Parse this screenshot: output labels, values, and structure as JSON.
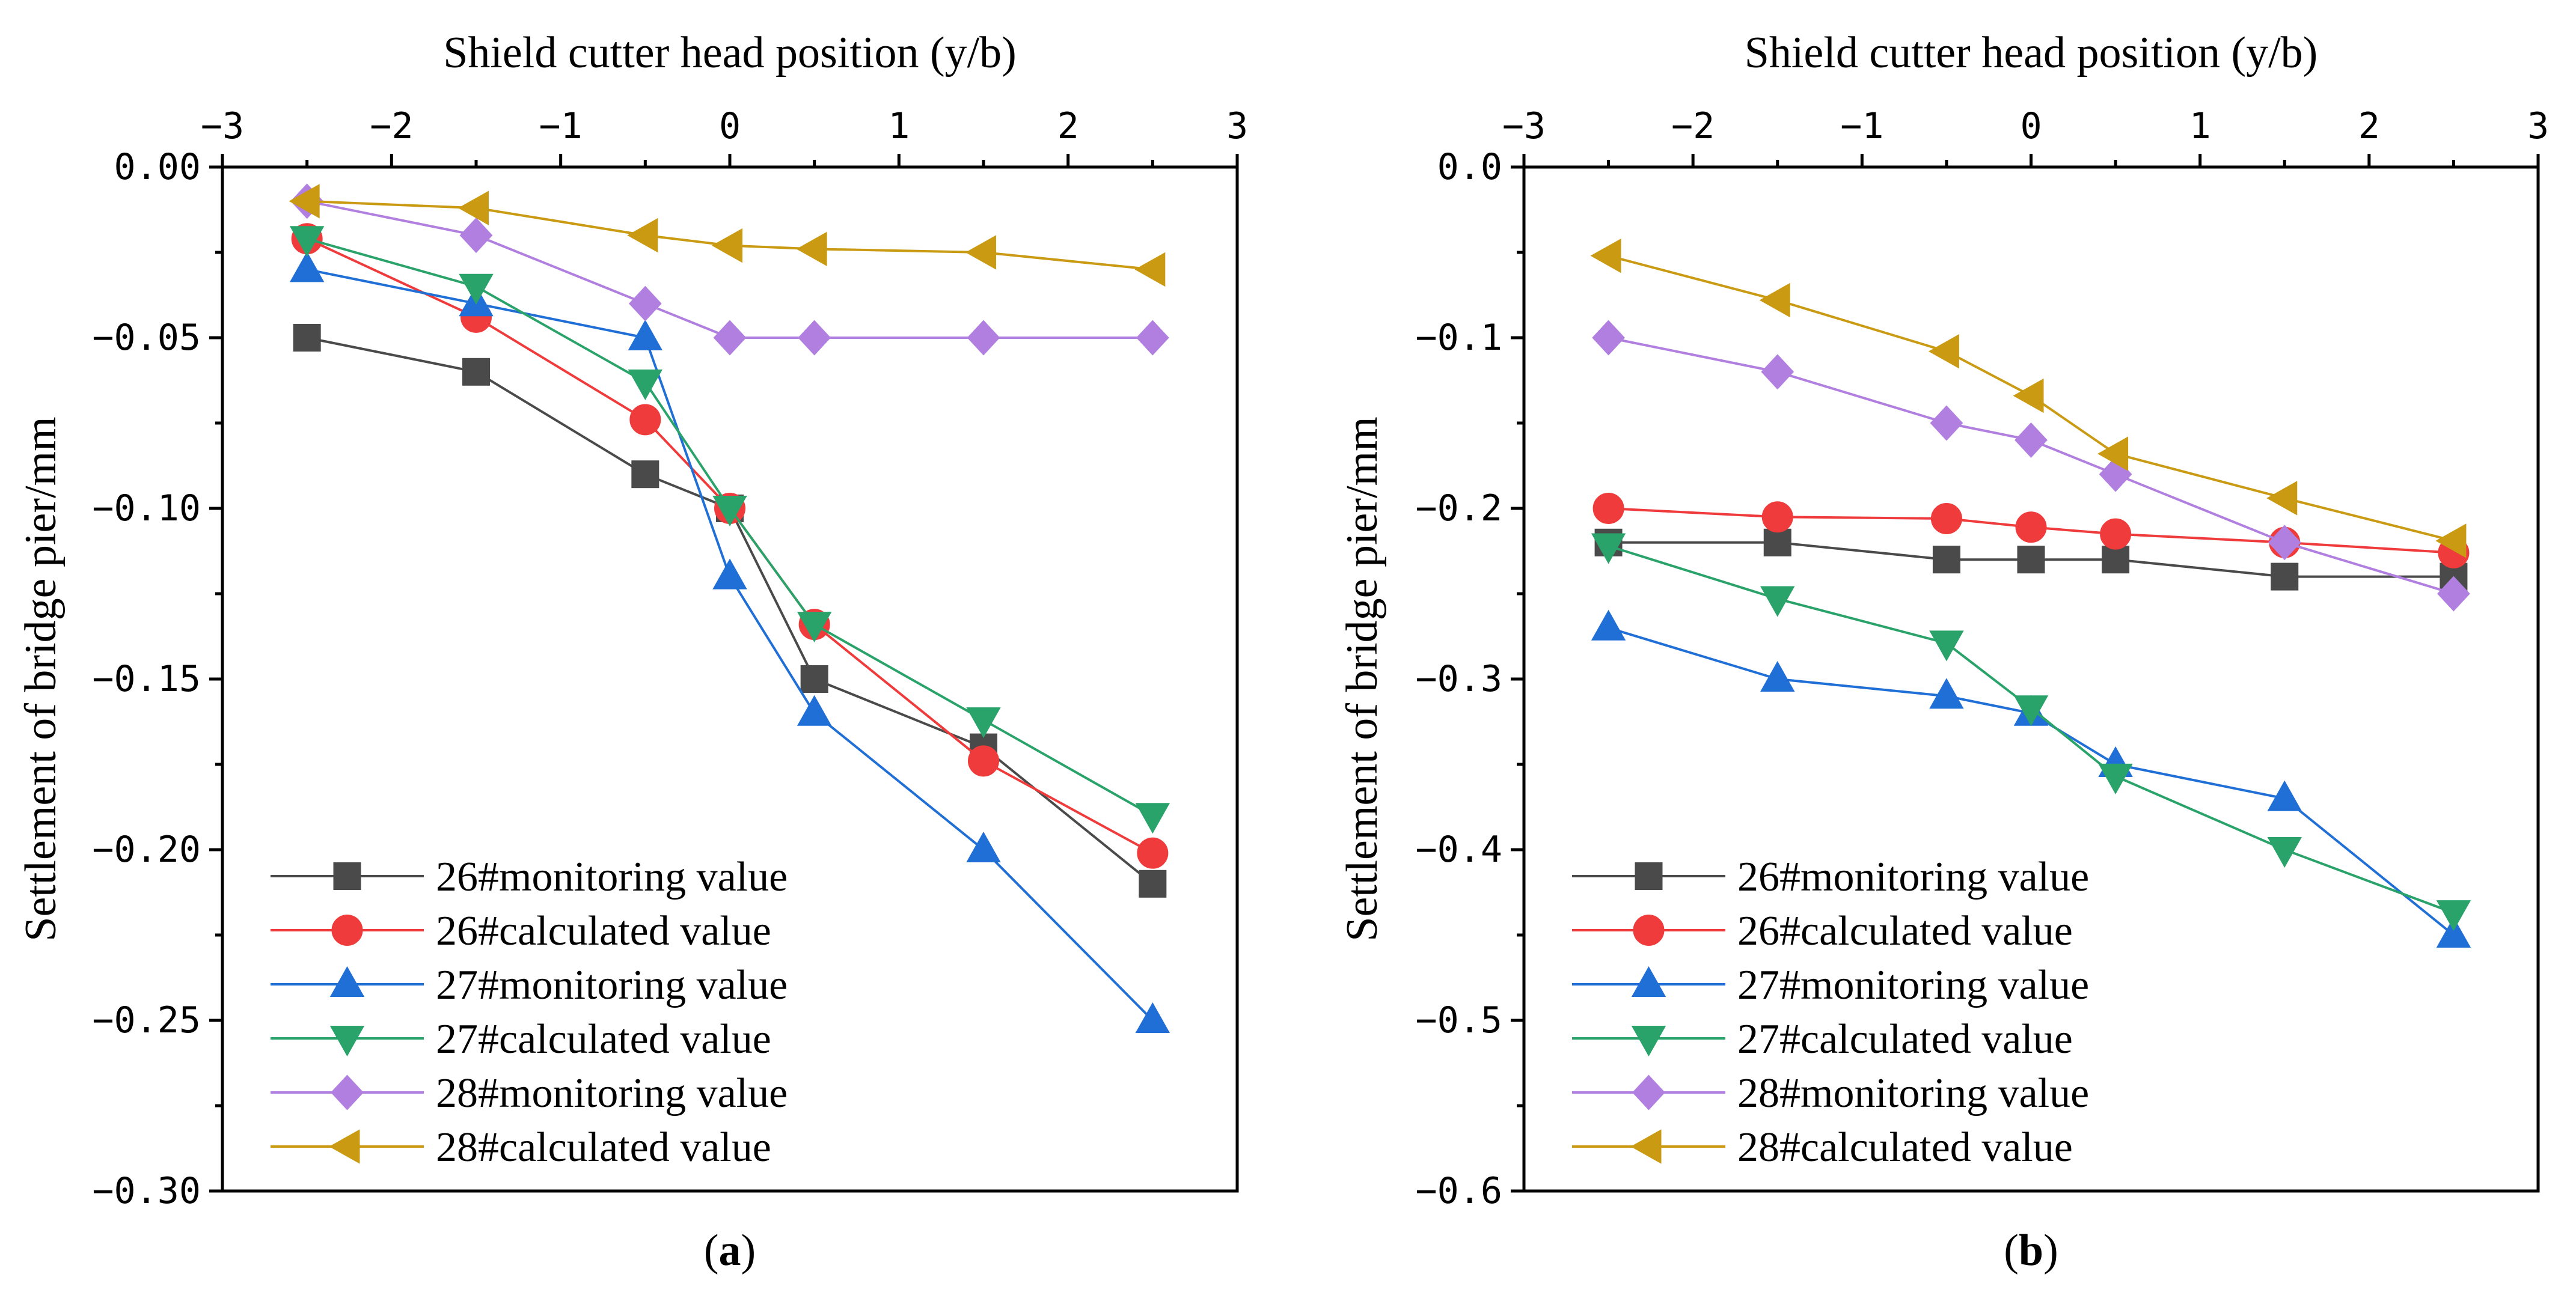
{
  "colors": {
    "26#monitoring value": "#4a4a4a",
    "26#calculated value": "#ef3b3b",
    "27#monitoring value": "#1f6fd6",
    "27#calculated value": "#2aa36a",
    "28#monitoring value": "#b07fe0",
    "28#calculated value": "#c99a12"
  },
  "chart_data": [
    {
      "type": "line",
      "panel_label": "a",
      "xlabel": "Shield cutter head position (y/b)",
      "ylabel": "Settlement of bridge pier/mm",
      "xlim": [
        -3,
        3
      ],
      "ylim": [
        -0.3,
        0.0
      ],
      "xticks": [
        -3,
        -2,
        -1,
        0,
        1,
        2,
        3
      ],
      "xtick_labels": [
        "−3",
        "−2",
        "−1",
        "0",
        "1",
        "2",
        "3"
      ],
      "yticks": [
        0.0,
        -0.05,
        -0.1,
        -0.15,
        -0.2,
        -0.25,
        -0.3
      ],
      "ytick_labels": [
        "0.00",
        "−0.05",
        "−0.10",
        "−0.15",
        "−0.20",
        "−0.25",
        "−0.30"
      ],
      "legend_position": "bottom-left",
      "x": [
        -2.5,
        -1.5,
        -0.5,
        0,
        0.5,
        1.5,
        2.5
      ],
      "series": [
        {
          "name": "26#monitoring value",
          "marker": "square",
          "values": [
            -0.05,
            -0.06,
            -0.09,
            -0.1,
            -0.15,
            -0.17,
            -0.21
          ]
        },
        {
          "name": "26#calculated value",
          "marker": "circle",
          "values": [
            -0.021,
            -0.044,
            -0.074,
            -0.1,
            -0.134,
            -0.174,
            -0.201
          ]
        },
        {
          "name": "27#monitoring value",
          "marker": "triangle-up",
          "values": [
            -0.03,
            -0.04,
            -0.05,
            -0.12,
            -0.16,
            -0.2,
            -0.25
          ]
        },
        {
          "name": "27#calculated value",
          "marker": "triangle-down",
          "values": [
            -0.021,
            -0.035,
            -0.063,
            -0.1,
            -0.134,
            -0.162,
            -0.19
          ]
        },
        {
          "name": "28#monitoring value",
          "marker": "diamond",
          "values": [
            -0.01,
            -0.02,
            -0.04,
            -0.05,
            -0.05,
            -0.05,
            -0.05
          ]
        },
        {
          "name": "28#calculated value",
          "marker": "triangle-left",
          "values": [
            -0.01,
            -0.012,
            -0.02,
            -0.023,
            -0.024,
            -0.025,
            -0.03
          ]
        }
      ]
    },
    {
      "type": "line",
      "panel_label": "b",
      "xlabel": "Shield cutter head position (y/b)",
      "ylabel": "Settlement of bridge pier/mm",
      "xlim": [
        -3,
        3
      ],
      "ylim": [
        -0.6,
        0.0
      ],
      "xticks": [
        -3,
        -2,
        -1,
        0,
        1,
        2,
        3
      ],
      "xtick_labels": [
        "−3",
        "−2",
        "−1",
        "0",
        "1",
        "2",
        "3"
      ],
      "yticks": [
        0.0,
        -0.1,
        -0.2,
        -0.3,
        -0.4,
        -0.5,
        -0.6
      ],
      "ytick_labels": [
        "0.0",
        "−0.1",
        "−0.2",
        "−0.3",
        "−0.4",
        "−0.5",
        "−0.6"
      ],
      "legend_position": "bottom-left",
      "x": [
        -2.5,
        -1.5,
        -0.5,
        0,
        0.5,
        1.5,
        2.5
      ],
      "series": [
        {
          "name": "26#monitoring value",
          "marker": "square",
          "values": [
            -0.22,
            -0.22,
            -0.23,
            -0.23,
            -0.23,
            -0.24,
            -0.24
          ]
        },
        {
          "name": "26#calculated value",
          "marker": "circle",
          "values": [
            -0.2,
            -0.205,
            -0.206,
            -0.211,
            -0.215,
            -0.22,
            -0.226
          ]
        },
        {
          "name": "27#monitoring value",
          "marker": "triangle-up",
          "values": [
            -0.27,
            -0.3,
            -0.31,
            -0.32,
            -0.35,
            -0.37,
            -0.45
          ]
        },
        {
          "name": "27#calculated value",
          "marker": "triangle-down",
          "values": [
            -0.222,
            -0.253,
            -0.279,
            -0.317,
            -0.357,
            -0.4,
            -0.437
          ]
        },
        {
          "name": "28#monitoring value",
          "marker": "diamond",
          "values": [
            -0.1,
            -0.12,
            -0.15,
            -0.16,
            -0.18,
            -0.22,
            -0.25
          ]
        },
        {
          "name": "28#calculated value",
          "marker": "triangle-left",
          "values": [
            -0.052,
            -0.078,
            -0.108,
            -0.134,
            -0.168,
            -0.194,
            -0.219
          ]
        }
      ]
    }
  ]
}
